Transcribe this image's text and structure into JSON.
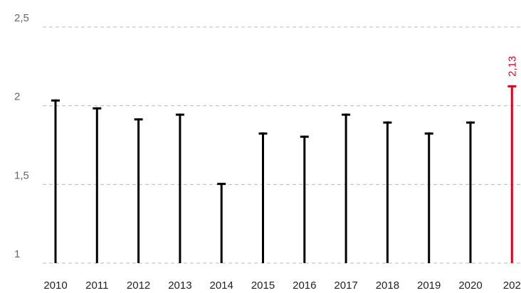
{
  "chart_data": {
    "type": "bar",
    "categories": [
      "2010",
      "2011",
      "2012",
      "2013",
      "2014",
      "2015",
      "2016",
      "2017",
      "2018",
      "2019",
      "2020",
      "202"
    ],
    "values": [
      2.04,
      1.99,
      1.92,
      1.95,
      1.51,
      1.83,
      1.81,
      1.95,
      1.9,
      1.83,
      1.9,
      2.13
    ],
    "value_labels": [
      null,
      null,
      null,
      null,
      null,
      null,
      null,
      null,
      null,
      null,
      null,
      "2,13"
    ],
    "colors": [
      "#000000",
      "#000000",
      "#000000",
      "#000000",
      "#000000",
      "#000000",
      "#000000",
      "#000000",
      "#000000",
      "#000000",
      "#000000",
      "#e3001b"
    ],
    "ylim": [
      1,
      2.5
    ],
    "yticks": [
      1,
      {
        "value": 1.5,
        "label": "1,5"
      },
      2,
      {
        "value": 2.5,
        "label": "2,5"
      }
    ],
    "grid": true
  }
}
